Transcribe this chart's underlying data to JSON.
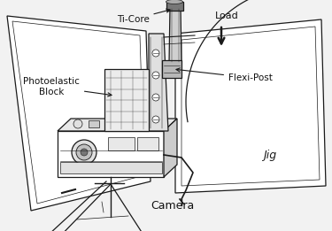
{
  "bg_color": "#f2f2f2",
  "line_color": "#1a1a1a",
  "fill_color": "#ffffff",
  "gray_fill": "#cccccc",
  "mid_gray": "#aaaaaa",
  "dark_gray": "#777777",
  "labels": {
    "ti_core": "Ti-Core",
    "load": "Load",
    "flexi_post": "Flexi-Post",
    "photoelastic": "Photoelastic\nBlock",
    "jig": "Jig",
    "camera": "Camera"
  },
  "figsize": [
    3.75,
    2.61
  ],
  "dpi": 100
}
